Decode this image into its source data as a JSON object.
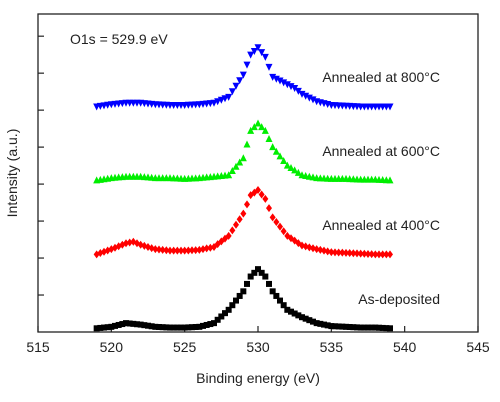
{
  "chart_data": {
    "type": "scatter",
    "xlabel": "Binding energy (eV)",
    "ylabel": "Intensity (a.u.)",
    "xlim": [
      515,
      545
    ],
    "ylim": [
      0,
      4.3
    ],
    "x_ticks": [
      515,
      520,
      525,
      530,
      535,
      540,
      545
    ],
    "y_ticks_labeled": false,
    "annotation": "O1s = 529.9 eV",
    "series": [
      {
        "label": "As-deposited",
        "color": "#000000",
        "marker": "square",
        "offset": 0,
        "points": [
          [
            519,
            0.05
          ],
          [
            520,
            0.07
          ],
          [
            521,
            0.12
          ],
          [
            522,
            0.1
          ],
          [
            523,
            0.07
          ],
          [
            524,
            0.06
          ],
          [
            525,
            0.06
          ],
          [
            526,
            0.07
          ],
          [
            527,
            0.12
          ],
          [
            528,
            0.3
          ],
          [
            529,
            0.55
          ],
          [
            529.5,
            0.75
          ],
          [
            530,
            0.85
          ],
          [
            530.5,
            0.75
          ],
          [
            531,
            0.55
          ],
          [
            532,
            0.3
          ],
          [
            533,
            0.2
          ],
          [
            534,
            0.12
          ],
          [
            535,
            0.08
          ],
          [
            536,
            0.07
          ],
          [
            537,
            0.06
          ],
          [
            538,
            0.06
          ],
          [
            539,
            0.05
          ]
        ]
      },
      {
        "label": "Annealed at 400°C",
        "color": "#ff0000",
        "marker": "diamond",
        "offset": 1,
        "points": [
          [
            519,
            0.05
          ],
          [
            520,
            0.12
          ],
          [
            521,
            0.2
          ],
          [
            521.5,
            0.22
          ],
          [
            522,
            0.18
          ],
          [
            523,
            0.12
          ],
          [
            524,
            0.1
          ],
          [
            525,
            0.1
          ],
          [
            526,
            0.11
          ],
          [
            527,
            0.15
          ],
          [
            528,
            0.3
          ],
          [
            529,
            0.6
          ],
          [
            529.5,
            0.85
          ],
          [
            530,
            0.92
          ],
          [
            530.5,
            0.8
          ],
          [
            531,
            0.55
          ],
          [
            532,
            0.3
          ],
          [
            533,
            0.17
          ],
          [
            534,
            0.12
          ],
          [
            535,
            0.08
          ],
          [
            536,
            0.07
          ],
          [
            537,
            0.06
          ],
          [
            538,
            0.05
          ],
          [
            539,
            0.05
          ]
        ]
      },
      {
        "label": "Annealed at 600°C",
        "color": "#00ee00",
        "marker": "triangle-up",
        "offset": 2,
        "points": [
          [
            519,
            0.05
          ],
          [
            520,
            0.08
          ],
          [
            521,
            0.1
          ],
          [
            522,
            0.1
          ],
          [
            523,
            0.08
          ],
          [
            524,
            0.08
          ],
          [
            525,
            0.07
          ],
          [
            526,
            0.08
          ],
          [
            527,
            0.1
          ],
          [
            528,
            0.12
          ],
          [
            529,
            0.35
          ],
          [
            529.5,
            0.72
          ],
          [
            530,
            0.82
          ],
          [
            530.5,
            0.72
          ],
          [
            531,
            0.5
          ],
          [
            532,
            0.25
          ],
          [
            533,
            0.12
          ],
          [
            534,
            0.08
          ],
          [
            535,
            0.07
          ],
          [
            536,
            0.07
          ],
          [
            537,
            0.06
          ],
          [
            538,
            0.06
          ],
          [
            539,
            0.05
          ]
        ]
      },
      {
        "label": "Annealed at 800°C",
        "color": "#0000ff",
        "marker": "triangle-down",
        "offset": 3,
        "points": [
          [
            519,
            0.05
          ],
          [
            520,
            0.08
          ],
          [
            521,
            0.1
          ],
          [
            522,
            0.1
          ],
          [
            523,
            0.08
          ],
          [
            524,
            0.07
          ],
          [
            525,
            0.07
          ],
          [
            526,
            0.08
          ],
          [
            527,
            0.1
          ],
          [
            528,
            0.18
          ],
          [
            529,
            0.48
          ],
          [
            529.5,
            0.75
          ],
          [
            530,
            0.85
          ],
          [
            530.5,
            0.72
          ],
          [
            531,
            0.45
          ],
          [
            532,
            0.35
          ],
          [
            532.5,
            0.3
          ],
          [
            533,
            0.22
          ],
          [
            534,
            0.12
          ],
          [
            535,
            0.07
          ],
          [
            536,
            0.06
          ],
          [
            537,
            0.05
          ],
          [
            538,
            0.05
          ],
          [
            539,
            0.05
          ]
        ]
      }
    ]
  }
}
